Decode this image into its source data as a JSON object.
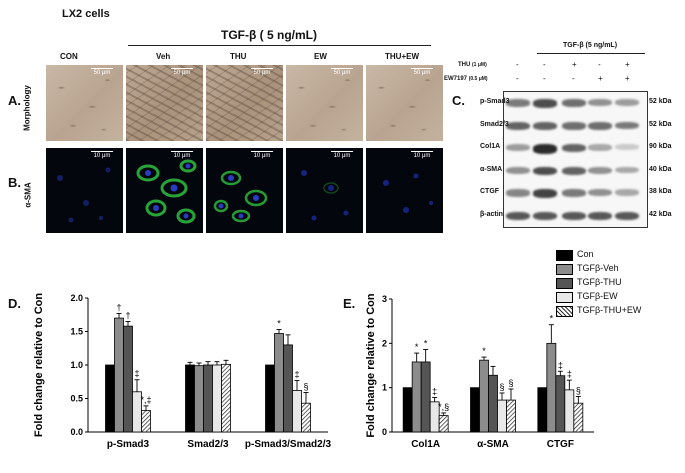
{
  "panelA": {
    "cell_line": "LX2 cells",
    "treatment_header": "TGF-β ( 5 ng/mL)",
    "groups": [
      "CON",
      "Veh",
      "THU",
      "EW",
      "THU+EW"
    ],
    "row_letter": "A.",
    "row_label": "Morphology",
    "scale_bar": "50 μm"
  },
  "panelB": {
    "row_letter": "B.",
    "row_label": "α-SMA",
    "scale_bar": "10 μm"
  },
  "panelC": {
    "letter": "C.",
    "header": "TGF-β (5 ng/mL)",
    "treat_rows": [
      {
        "label": "THU",
        "conc": "(1 μM)",
        "marks": [
          "-",
          "-",
          "+",
          "-",
          "+"
        ]
      },
      {
        "label": "EW7197",
        "conc": "(0.5 μM)",
        "marks": [
          "-",
          "-",
          "-",
          "+",
          "+"
        ]
      }
    ],
    "bands": [
      {
        "protein": "p-Smad3",
        "size": "52 kDa"
      },
      {
        "protein": "Smad2/3",
        "size": "52 kDa"
      },
      {
        "protein": "Col1A",
        "size": "90 kDa"
      },
      {
        "protein": "α-SMA",
        "size": "40 kDa"
      },
      {
        "protein": "CTGF",
        "size": "38 kDa"
      },
      {
        "protein": "β-actin",
        "size": "42 kDa"
      }
    ]
  },
  "legend": [
    "Con",
    "TGFβ-Veh",
    "TGFβ-THU",
    "TGFβ-EW",
    "TGFβ-THU+EW"
  ],
  "chart_data": [
    {
      "type": "bar",
      "panel": "D.",
      "ylabel": "Fold change relative to Con",
      "ylim": [
        0,
        2.0
      ],
      "yticks": [
        "0.0",
        "0.5",
        "1.0",
        "1.5",
        "2.0"
      ],
      "categories": [
        "p-Smad3",
        "Smad2/3",
        "p-Smad3/Smad2/3"
      ],
      "series": [
        {
          "name": "Con",
          "values": [
            1.0,
            1.0,
            1.0
          ],
          "errors": [
            0,
            0.04,
            0
          ]
        },
        {
          "name": "TGFβ-Veh",
          "values": [
            1.7,
            0.99,
            1.47
          ],
          "errors": [
            0.07,
            0.04,
            0.06
          ]
        },
        {
          "name": "TGFβ-THU",
          "values": [
            1.58,
            1.0,
            1.3
          ],
          "errors": [
            0.07,
            0.05,
            0.15
          ]
        },
        {
          "name": "TGFβ-EW",
          "values": [
            0.6,
            1.0,
            0.62
          ],
          "errors": [
            0.18,
            0.05,
            0.15
          ]
        },
        {
          "name": "TGFβ-THU+EW",
          "values": [
            0.32,
            1.01,
            0.43
          ],
          "errors": [
            0.07,
            0.06,
            0.16
          ]
        }
      ],
      "annotations": [
        {
          "category": 0,
          "series": 1,
          "text": "†"
        },
        {
          "category": 0,
          "series": 2,
          "text": "†"
        },
        {
          "category": 0,
          "series": 3,
          "text": "‡"
        },
        {
          "category": 0,
          "series": 4,
          "text": "*,‡"
        },
        {
          "category": 2,
          "series": 1,
          "text": "*"
        },
        {
          "category": 2,
          "series": 3,
          "text": "‡"
        },
        {
          "category": 2,
          "series": 4,
          "text": "§"
        }
      ]
    },
    {
      "type": "bar",
      "panel": "E.",
      "ylabel": "Fold change relative to Con",
      "ylim": [
        0,
        3
      ],
      "yticks": [
        "0",
        "1",
        "2",
        "3"
      ],
      "categories": [
        "Col1A",
        "α-SMA",
        "CTGF"
      ],
      "series": [
        {
          "name": "Con",
          "values": [
            1.0,
            1.0,
            1.0
          ],
          "errors": [
            0,
            0,
            0
          ]
        },
        {
          "name": "TGFβ-Veh",
          "values": [
            1.58,
            1.62,
            2.0
          ],
          "errors": [
            0.2,
            0.07,
            0.42
          ]
        },
        {
          "name": "TGFβ-THU",
          "values": [
            1.58,
            1.28,
            1.27
          ],
          "errors": [
            0.28,
            0.2,
            0.1
          ]
        },
        {
          "name": "TGFβ-EW",
          "values": [
            0.68,
            0.72,
            0.95
          ],
          "errors": [
            0.1,
            0.16,
            0.22
          ]
        },
        {
          "name": "TGFβ-THU+EW",
          "values": [
            0.37,
            0.72,
            0.65
          ],
          "errors": [
            0.06,
            0.25,
            0.15
          ]
        }
      ],
      "annotations": [
        {
          "category": 0,
          "series": 1,
          "text": "*"
        },
        {
          "category": 0,
          "series": 2,
          "text": "*"
        },
        {
          "category": 0,
          "series": 3,
          "text": "‡"
        },
        {
          "category": 0,
          "series": 4,
          "text": "*,§"
        },
        {
          "category": 1,
          "series": 1,
          "text": "*"
        },
        {
          "category": 1,
          "series": 3,
          "text": "§"
        },
        {
          "category": 1,
          "series": 4,
          "text": "§"
        },
        {
          "category": 2,
          "series": 1,
          "text": "*"
        },
        {
          "category": 2,
          "series": 2,
          "text": "‡"
        },
        {
          "category": 2,
          "series": 3,
          "text": "‡"
        },
        {
          "category": 2,
          "series": 4,
          "text": "§"
        }
      ]
    }
  ],
  "colors": {
    "Con": "#000000",
    "TGFβ-Veh": "#8c8c8c",
    "TGFβ-THU": "#555555",
    "TGFβ-EW": "#e8e8e8",
    "TGFβ-THU+EW": "hatch"
  }
}
